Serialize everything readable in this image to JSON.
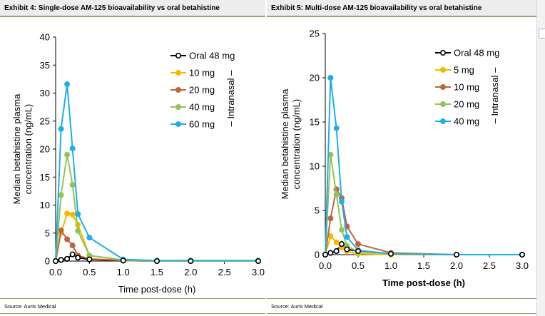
{
  "exhibits": [
    {
      "title": "Exhibit 4: Single-dose AM-125 bioavailability vs oral betahistine",
      "source": "Source: Auris Medical"
    },
    {
      "title": "Exhibit 5: Multi-dose AM-125 bioavailability vs oral betahistine",
      "source": "Source: Auris Medical"
    }
  ],
  "chart_data": [
    {
      "type": "line",
      "xlabel": "Time post-dose (h)",
      "ylabel_lines": [
        "Median betahistine plasma",
        "concentration (ng/mL)"
      ],
      "xlim": [
        0,
        3.0
      ],
      "ylim": [
        0,
        40
      ],
      "xticks": [
        "0.0",
        "0.5",
        "1.0",
        "1.5",
        "2.0",
        "2.5",
        "3.0"
      ],
      "yticks": [
        "0",
        "5",
        "10",
        "15",
        "20",
        "25",
        "30",
        "35",
        "40"
      ],
      "legend_bracket_label": "– Intranasal –",
      "legend_position": "top-right",
      "series": [
        {
          "name": "Oral 48 mg",
          "color": "#000000",
          "fill": "#ffffff",
          "x": [
            0,
            0.08,
            0.17,
            0.25,
            0.33,
            0.5,
            1.0,
            1.5,
            2.0,
            3.0
          ],
          "y": [
            0,
            0.2,
            0.4,
            1.2,
            0.6,
            0.3,
            0.1,
            0,
            0,
            0
          ]
        },
        {
          "name": "10 mg",
          "color": "#f5b900",
          "fill": "#f5b900",
          "x": [
            0,
            0.08,
            0.17,
            0.25,
            0.33,
            0.5,
            1.0,
            1.5,
            2.0,
            3.0
          ],
          "y": [
            0,
            5.0,
            8.5,
            8.3,
            6.5,
            1.0,
            0.1,
            0,
            0,
            0
          ]
        },
        {
          "name": "20 mg",
          "color": "#c0653a",
          "fill": "#c0653a",
          "x": [
            0,
            0.08,
            0.17,
            0.25,
            0.33,
            0.5,
            1.0,
            1.5,
            2.0,
            3.0
          ],
          "y": [
            0,
            5.5,
            3.9,
            2.8,
            1.0,
            0.4,
            0.1,
            0,
            0,
            0
          ]
        },
        {
          "name": "40 mg",
          "color": "#92c357",
          "fill": "#92c357",
          "x": [
            0,
            0.08,
            0.17,
            0.25,
            0.33,
            0.5,
            1.0,
            1.5,
            2.0,
            3.0
          ],
          "y": [
            0,
            11.8,
            19.0,
            13.6,
            5.4,
            1.0,
            0.2,
            0,
            0,
            0
          ]
        },
        {
          "name": "60 mg",
          "color": "#1faee8",
          "fill": "#1faee8",
          "x": [
            0,
            0.08,
            0.17,
            0.25,
            0.33,
            0.5,
            1.0,
            1.5,
            2.0,
            3.0
          ],
          "y": [
            0,
            23.6,
            31.6,
            20.1,
            8.4,
            4.2,
            0.3,
            0.1,
            0.1,
            0.1
          ]
        }
      ]
    },
    {
      "type": "line",
      "xlabel": "Time post-dose (h)",
      "ylabel_lines": [
        "Median betahistine plasma",
        "concentration (ng/mL)"
      ],
      "xlim": [
        0,
        3.0
      ],
      "ylim": [
        0,
        25
      ],
      "xticks": [
        "0.0",
        "0.5",
        "1.0",
        "1.5",
        "2.0",
        "2.5",
        "3.0"
      ],
      "yticks": [
        "0",
        "5",
        "10",
        "15",
        "20",
        "25"
      ],
      "legend_bracket_label": "– Intranasal –",
      "legend_position": "top-right",
      "series": [
        {
          "name": "Oral 48 mg",
          "color": "#000000",
          "fill": "#ffffff",
          "x": [
            0,
            0.08,
            0.17,
            0.25,
            0.33,
            0.5,
            1.0,
            2.0,
            3.0
          ],
          "y": [
            0,
            0.2,
            0.4,
            1.2,
            0.6,
            0.4,
            0.1,
            0,
            0
          ]
        },
        {
          "name": "5 mg",
          "color": "#f5b900",
          "fill": "#f5b900",
          "x": [
            0,
            0.08,
            0.17,
            0.25,
            0.33,
            0.5,
            1.0,
            2.0,
            3.0
          ],
          "y": [
            0,
            2.1,
            1.4,
            0.8,
            0.4,
            0.1,
            0,
            0,
            0
          ]
        },
        {
          "name": "10 mg",
          "color": "#c0653a",
          "fill": "#c0653a",
          "x": [
            0,
            0.08,
            0.17,
            0.25,
            0.33,
            0.5,
            1.0,
            2.0,
            3.0
          ],
          "y": [
            0,
            4.1,
            7.4,
            6.4,
            3.2,
            1.2,
            0.2,
            0,
            0
          ]
        },
        {
          "name": "20 mg",
          "color": "#92c357",
          "fill": "#92c357",
          "x": [
            0,
            0.08,
            0.17,
            0.25,
            0.33,
            0.5,
            1.0,
            2.0,
            3.0
          ],
          "y": [
            0,
            11.3,
            6.8,
            2.8,
            1.0,
            0.3,
            0.1,
            0,
            0
          ]
        },
        {
          "name": "40 mg",
          "color": "#1faee8",
          "fill": "#1faee8",
          "x": [
            0,
            0.08,
            0.17,
            0.25,
            0.33,
            0.5,
            1.0,
            2.0,
            3.0
          ],
          "y": [
            0,
            20.0,
            14.3,
            6.0,
            2.0,
            0.5,
            0.1,
            0,
            0
          ]
        }
      ]
    }
  ]
}
